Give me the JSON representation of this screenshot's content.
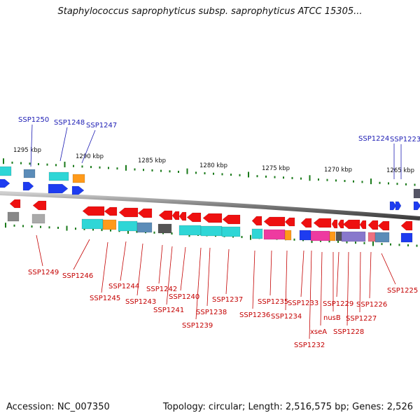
{
  "header": {
    "title": "Staphylococcus saprophyticus subsp. saprophyticus ATCC 15305..."
  },
  "footer": {
    "accession": "Accession: NC_007350",
    "stats": "Topology: circular; Length: 2,516,575 bp; Genes: 2,526"
  },
  "scale_labels": [
    "1295 kbp",
    "1290 kbp",
    "1285 kbp",
    "1280 kbp",
    "1275 kbp",
    "1270 kbp",
    "1265 kbp"
  ],
  "top_genes": [
    "SSP1250",
    "SSP1248",
    "SSP1247",
    "SSP1224",
    "SSP1223"
  ],
  "bottom_genes": [
    "SSP1249",
    "SSP1246",
    "SSP1245",
    "SSP1244",
    "SSP1243",
    "SSP1242",
    "SSP1241",
    "SSP1240",
    "SSP1239",
    "SSP1238",
    "SSP1237",
    "SSP1236",
    "SSP1235",
    "SSP1234",
    "SSP1233",
    "SSP1232",
    "xseA",
    "nusB",
    "SSP1229",
    "SSP1228",
    "SSP1227",
    "SSP1226",
    "SSP1225"
  ],
  "colors": {
    "forward_label": "#1c1cb4",
    "reverse_label": "#c40000",
    "forward_gene": "#1e3cf0",
    "reverse_gene": "#ee1010",
    "cyan": "#2fd6d6",
    "orange": "#ff9a1a",
    "steel": "#5b8cb8",
    "magenta": "#ee3aa0",
    "purple": "#8878cc",
    "gray": "#888888",
    "dark": "#555555",
    "pink": "#ee7080",
    "tick": "#1a7a1a"
  }
}
